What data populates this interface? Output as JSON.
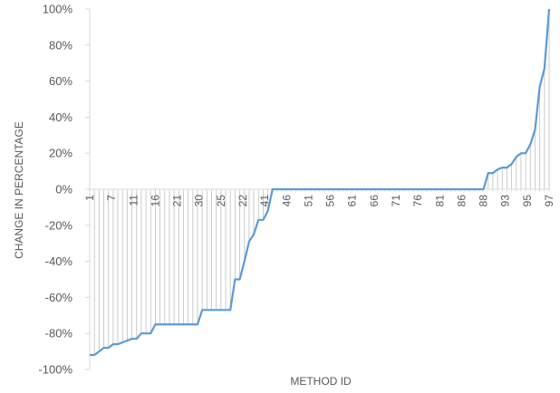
{
  "chart_data": {
    "type": "line",
    "title": "",
    "xlabel": "METHOD ID",
    "ylabel": "CHANGE IN PERCENTAGE",
    "ylim": [
      -1.0,
      1.0
    ],
    "y_ticks": [
      "100%",
      "80%",
      "60%",
      "40%",
      "20%",
      "0%",
      "-20%",
      "-40%",
      "-60%",
      "-80%",
      "-100%"
    ],
    "y_tick_values": [
      1.0,
      0.8,
      0.6,
      0.4,
      0.2,
      0.0,
      -0.2,
      -0.4,
      -0.6,
      -0.8,
      -1.0
    ],
    "x_tick_labels": [
      "1",
      "7",
      "11",
      "16",
      "21",
      "30",
      "25",
      "22",
      "41",
      "46",
      "51",
      "56",
      "61",
      "66",
      "71",
      "76",
      "81",
      "86",
      "88",
      "93",
      "95",
      "97"
    ],
    "grid": false,
    "drop_lines": true,
    "colors": {
      "line": "#5b9bd5",
      "drop_lines": "#bfbfbf",
      "axis": "#d9d9d9",
      "text": "#595959"
    },
    "series": [
      {
        "values": [
          -0.92,
          -0.92,
          -0.9,
          -0.88,
          -0.88,
          -0.86,
          -0.86,
          -0.85,
          -0.84,
          -0.83,
          -0.83,
          -0.8,
          -0.8,
          -0.8,
          -0.75,
          -0.75,
          -0.75,
          -0.75,
          -0.75,
          -0.75,
          -0.75,
          -0.75,
          -0.75,
          -0.75,
          -0.67,
          -0.67,
          -0.67,
          -0.67,
          -0.67,
          -0.67,
          -0.67,
          -0.5,
          -0.5,
          -0.4,
          -0.29,
          -0.25,
          -0.17,
          -0.17,
          -0.12,
          0.0,
          0.0,
          0.0,
          0.0,
          0.0,
          0.0,
          0.0,
          0.0,
          0.0,
          0.0,
          0.0,
          0.0,
          0.0,
          0.0,
          0.0,
          0.0,
          0.0,
          0.0,
          0.0,
          0.0,
          0.0,
          0.0,
          0.0,
          0.0,
          0.0,
          0.0,
          0.0,
          0.0,
          0.0,
          0.0,
          0.0,
          0.0,
          0.0,
          0.0,
          0.0,
          0.0,
          0.0,
          0.0,
          0.0,
          0.0,
          0.0,
          0.0,
          0.0,
          0.0,
          0.0,
          0.0,
          0.09,
          0.09,
          0.11,
          0.12,
          0.12,
          0.14,
          0.18,
          0.2,
          0.2,
          0.25,
          0.33,
          0.57,
          0.67,
          1.0
        ]
      }
    ]
  }
}
